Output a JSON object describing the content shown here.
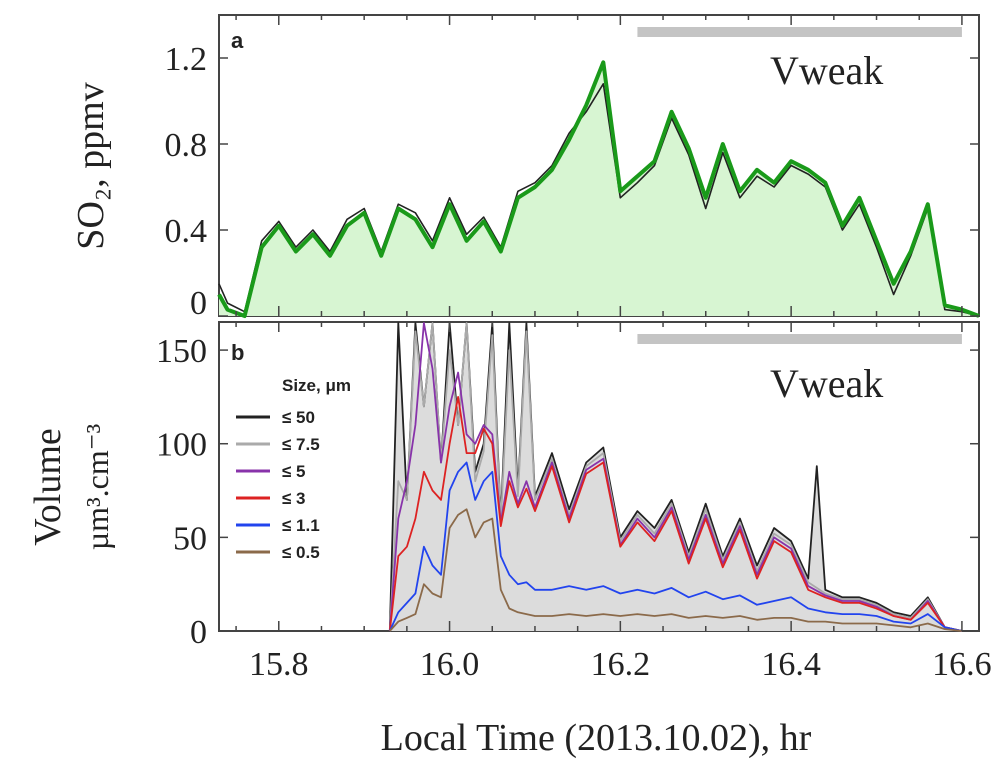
{
  "figure": {
    "xlabel": "Local Time (2013.10.02), hr"
  },
  "chart_data": [
    {
      "type": "area",
      "panel_label": "a",
      "annotation": "Vweak",
      "ylabel": "SO₂, ppmv",
      "xlim": [
        15.73,
        16.62
      ],
      "ylim": [
        0,
        1.4
      ],
      "x_ticks": [
        15.8,
        16.0,
        16.2,
        16.4,
        16.6
      ],
      "x_tick_labels": [
        "15.8",
        "16.0",
        "16.2",
        "16.4",
        "16.6"
      ],
      "y_ticks": [
        0,
        0.4,
        0.8,
        1.2
      ],
      "y_tick_labels": [
        "0",
        "0.4",
        "0.8",
        "1.2"
      ],
      "bar": {
        "x_start": 16.22,
        "x_end": 16.6
      },
      "series": [
        {
          "color": "#222222",
          "x": [
            15.73,
            15.74,
            15.76,
            15.78,
            15.8,
            15.82,
            15.84,
            15.86,
            15.88,
            15.9,
            15.92,
            15.94,
            15.96,
            15.98,
            16.0,
            16.02,
            16.04,
            16.06,
            16.08,
            16.1,
            16.12,
            16.14,
            16.16,
            16.18,
            16.2,
            16.22,
            16.24,
            16.26,
            16.28,
            16.3,
            16.32,
            16.34,
            16.36,
            16.38,
            16.4,
            16.42,
            16.44,
            16.46,
            16.48,
            16.5,
            16.52,
            16.54,
            16.56,
            16.58,
            16.6,
            16.62
          ],
          "y": [
            0.15,
            0.06,
            0.02,
            0.35,
            0.44,
            0.32,
            0.4,
            0.3,
            0.45,
            0.5,
            0.3,
            0.52,
            0.48,
            0.35,
            0.55,
            0.38,
            0.46,
            0.32,
            0.58,
            0.62,
            0.7,
            0.85,
            0.95,
            1.08,
            0.55,
            0.62,
            0.7,
            0.92,
            0.75,
            0.5,
            0.76,
            0.55,
            0.65,
            0.6,
            0.7,
            0.66,
            0.6,
            0.4,
            0.52,
            0.32,
            0.1,
            0.28,
            0.5,
            0.03,
            0.02,
            0.0
          ]
        },
        {
          "color": "#1a9a1a",
          "x": [
            15.73,
            15.74,
            15.76,
            15.78,
            15.8,
            15.82,
            15.84,
            15.86,
            15.88,
            15.9,
            15.92,
            15.94,
            15.96,
            15.98,
            16.0,
            16.02,
            16.04,
            16.06,
            16.08,
            16.1,
            16.12,
            16.14,
            16.16,
            16.18,
            16.2,
            16.22,
            16.24,
            16.26,
            16.28,
            16.3,
            16.32,
            16.34,
            16.36,
            16.38,
            16.4,
            16.42,
            16.44,
            16.46,
            16.48,
            16.5,
            16.52,
            16.54,
            16.56,
            16.58,
            16.6,
            16.62
          ],
          "y": [
            0.1,
            0.03,
            0.0,
            0.32,
            0.42,
            0.3,
            0.38,
            0.28,
            0.42,
            0.48,
            0.28,
            0.5,
            0.45,
            0.32,
            0.52,
            0.35,
            0.44,
            0.3,
            0.55,
            0.6,
            0.68,
            0.82,
            0.98,
            1.18,
            0.58,
            0.65,
            0.72,
            0.95,
            0.78,
            0.55,
            0.8,
            0.58,
            0.68,
            0.62,
            0.72,
            0.68,
            0.62,
            0.42,
            0.55,
            0.35,
            0.15,
            0.3,
            0.52,
            0.05,
            0.03,
            0.0
          ]
        }
      ]
    },
    {
      "type": "line",
      "panel_label": "b",
      "annotation": "Vweak",
      "ylabel": "Volume",
      "ylabel2": "µm³.cm⁻³",
      "legend_title": "Size, μm",
      "legend_position": "top-left",
      "xlim": [
        15.73,
        16.62
      ],
      "ylim": [
        0,
        165
      ],
      "x_ticks": [
        15.8,
        16.0,
        16.2,
        16.4,
        16.6
      ],
      "x_tick_labels": [
        "15.8",
        "16.0",
        "16.2",
        "16.4",
        "16.6"
      ],
      "y_ticks": [
        0,
        50,
        100,
        150
      ],
      "y_tick_labels": [
        "0",
        "50",
        "100",
        "150"
      ],
      "bar": {
        "x_start": 16.22,
        "x_end": 16.6
      },
      "series": [
        {
          "name": "≤ 50",
          "color": "#222222",
          "x": [
            15.93,
            15.94,
            15.95,
            15.96,
            15.97,
            15.98,
            15.99,
            16.0,
            16.01,
            16.02,
            16.03,
            16.04,
            16.05,
            16.06,
            16.07,
            16.08,
            16.09,
            16.1,
            16.12,
            16.14,
            16.16,
            16.18,
            16.2,
            16.22,
            16.24,
            16.26,
            16.28,
            16.3,
            16.32,
            16.34,
            16.36,
            16.38,
            16.4,
            16.42,
            16.43,
            16.44,
            16.46,
            16.48,
            16.5,
            16.52,
            16.54,
            16.56,
            16.58,
            16.6
          ],
          "y": [
            0,
            165,
            70,
            165,
            120,
            165,
            90,
            165,
            110,
            165,
            85,
            100,
            165,
            60,
            165,
            75,
            165,
            72,
            95,
            65,
            90,
            98,
            50,
            64,
            55,
            70,
            42,
            68,
            40,
            60,
            35,
            55,
            48,
            28,
            88,
            22,
            18,
            18,
            15,
            10,
            8,
            18,
            2,
            0
          ]
        },
        {
          "name": "≤ 7.5",
          "color": "#aaaaaa",
          "x": [
            15.93,
            15.94,
            15.95,
            15.96,
            15.97,
            15.98,
            15.99,
            16.0,
            16.01,
            16.02,
            16.03,
            16.04,
            16.05,
            16.06,
            16.07,
            16.08,
            16.09,
            16.1,
            16.12,
            16.14,
            16.16,
            16.18,
            16.2,
            16.22,
            16.24,
            16.26,
            16.28,
            16.3,
            16.32,
            16.34,
            16.36,
            16.38,
            16.4,
            16.42,
            16.44,
            16.46,
            16.48,
            16.5,
            16.52,
            16.54,
            16.56,
            16.58,
            16.6
          ],
          "y": [
            0,
            80,
            70,
            160,
            120,
            165,
            90,
            150,
            110,
            165,
            80,
            96,
            158,
            58,
            150,
            72,
            160,
            70,
            92,
            62,
            88,
            95,
            48,
            62,
            52,
            68,
            40,
            65,
            38,
            58,
            32,
            52,
            46,
            26,
            20,
            17,
            17,
            14,
            9,
            7,
            17,
            2,
            0
          ]
        },
        {
          "name": "≤ 5",
          "color": "#8833aa",
          "x": [
            15.93,
            15.94,
            15.95,
            15.96,
            15.97,
            15.98,
            15.99,
            16.0,
            16.01,
            16.02,
            16.03,
            16.04,
            16.05,
            16.06,
            16.07,
            16.08,
            16.09,
            16.1,
            16.12,
            16.14,
            16.16,
            16.18,
            16.2,
            16.22,
            16.24,
            16.26,
            16.28,
            16.3,
            16.32,
            16.34,
            16.36,
            16.38,
            16.4,
            16.42,
            16.44,
            16.46,
            16.48,
            16.5,
            16.52,
            16.54,
            16.56,
            16.58,
            16.6
          ],
          "y": [
            0,
            60,
            80,
            110,
            165,
            140,
            90,
            120,
            138,
            105,
            100,
            110,
            105,
            58,
            85,
            68,
            80,
            66,
            90,
            60,
            86,
            92,
            46,
            60,
            50,
            66,
            38,
            62,
            36,
            56,
            30,
            50,
            44,
            24,
            19,
            16,
            16,
            13,
            8,
            6,
            16,
            2,
            0
          ]
        },
        {
          "name": "≤ 3",
          "color": "#dd2222",
          "x": [
            15.93,
            15.94,
            15.95,
            15.96,
            15.97,
            15.98,
            15.99,
            16.0,
            16.01,
            16.02,
            16.03,
            16.04,
            16.05,
            16.06,
            16.07,
            16.08,
            16.09,
            16.1,
            16.12,
            16.14,
            16.16,
            16.18,
            16.2,
            16.22,
            16.24,
            16.26,
            16.28,
            16.3,
            16.32,
            16.34,
            16.36,
            16.38,
            16.4,
            16.42,
            16.44,
            16.46,
            16.48,
            16.5,
            16.52,
            16.54,
            16.56,
            16.58,
            16.6
          ],
          "y": [
            0,
            40,
            45,
            60,
            85,
            75,
            70,
            100,
            125,
            95,
            95,
            108,
            100,
            56,
            80,
            66,
            76,
            64,
            88,
            58,
            84,
            90,
            45,
            58,
            48,
            64,
            36,
            60,
            34,
            54,
            28,
            48,
            42,
            22,
            18,
            15,
            15,
            12,
            8,
            6,
            15,
            2,
            0
          ]
        },
        {
          "name": "≤ 1.1",
          "color": "#2244ee",
          "x": [
            15.93,
            15.94,
            15.95,
            15.96,
            15.97,
            15.98,
            15.99,
            16.0,
            16.01,
            16.02,
            16.03,
            16.04,
            16.05,
            16.06,
            16.07,
            16.08,
            16.09,
            16.1,
            16.12,
            16.14,
            16.16,
            16.18,
            16.2,
            16.22,
            16.24,
            16.26,
            16.28,
            16.3,
            16.32,
            16.34,
            16.36,
            16.38,
            16.4,
            16.42,
            16.44,
            16.46,
            16.48,
            16.5,
            16.52,
            16.54,
            16.56,
            16.58,
            16.6
          ],
          "y": [
            0,
            10,
            15,
            20,
            45,
            35,
            30,
            75,
            85,
            90,
            70,
            80,
            85,
            40,
            30,
            25,
            26,
            22,
            22,
            24,
            22,
            24,
            20,
            22,
            20,
            23,
            18,
            21,
            17,
            19,
            14,
            16,
            18,
            12,
            10,
            9,
            9,
            8,
            5,
            4,
            9,
            2,
            0
          ]
        },
        {
          "name": "≤ 0.5",
          "color": "#8b6a4a",
          "x": [
            15.93,
            15.94,
            15.95,
            15.96,
            15.97,
            15.98,
            15.99,
            16.0,
            16.01,
            16.02,
            16.03,
            16.04,
            16.05,
            16.06,
            16.07,
            16.08,
            16.09,
            16.1,
            16.12,
            16.14,
            16.16,
            16.18,
            16.2,
            16.22,
            16.24,
            16.26,
            16.28,
            16.3,
            16.32,
            16.34,
            16.36,
            16.38,
            16.4,
            16.42,
            16.44,
            16.46,
            16.48,
            16.5,
            16.52,
            16.54,
            16.56,
            16.58,
            16.6
          ],
          "y": [
            0,
            5,
            7,
            9,
            25,
            20,
            18,
            55,
            62,
            65,
            50,
            58,
            60,
            22,
            12,
            10,
            9,
            8,
            8,
            9,
            8,
            9,
            8,
            9,
            8,
            9,
            7,
            8,
            7,
            8,
            6,
            7,
            7,
            5,
            5,
            4,
            4,
            4,
            3,
            2,
            4,
            1,
            0
          ]
        }
      ]
    }
  ]
}
